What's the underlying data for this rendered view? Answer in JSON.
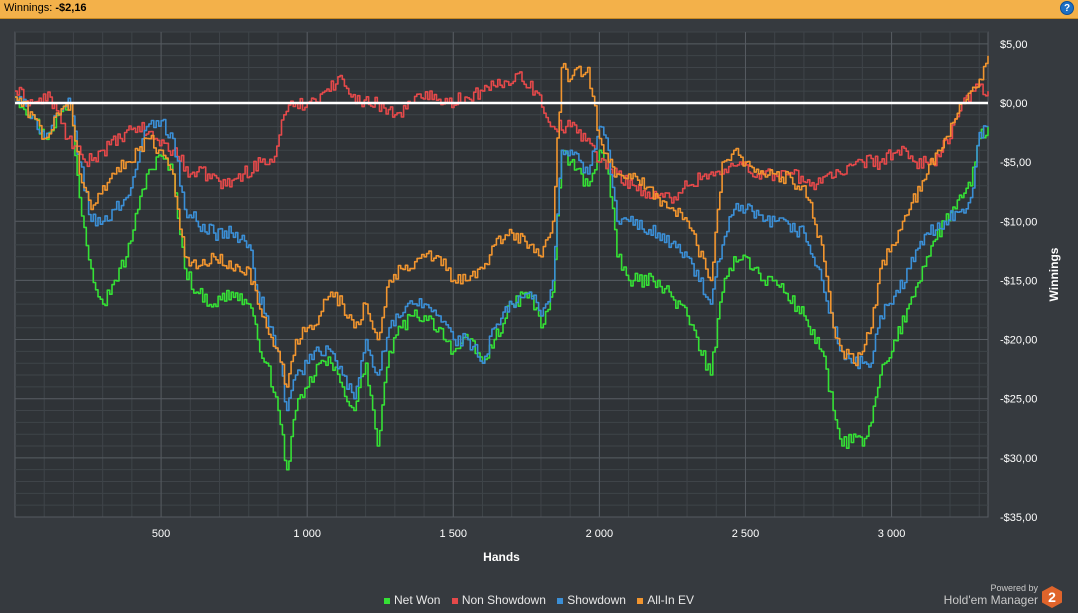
{
  "header": {
    "winnings_label": "Winnings:",
    "winnings_value": "-$2,16",
    "help_glyph": "?"
  },
  "branding": {
    "powered_by": "Powered by",
    "product": "Hold'em Manager",
    "logo_digit": "2"
  },
  "colors": {
    "background": "#363a3f",
    "plot_bg": "#2f3337",
    "header": "#f3b14a",
    "net_won": "#35e035",
    "non_showdown": "#e5494a",
    "showdown": "#3b8fd6",
    "all_in_ev": "#f1952f"
  },
  "chart_data": {
    "type": "line",
    "xlabel": "Hands",
    "ylabel": "Winnings",
    "xlim": [
      0,
      3330
    ],
    "ylim": [
      -35,
      6
    ],
    "x_ticks": [
      500,
      1000,
      1500,
      2000,
      2500,
      3000
    ],
    "x_tick_labels": [
      "500",
      "1 000",
      "1 500",
      "2 000",
      "2 500",
      "3 000"
    ],
    "y_ticks": [
      5,
      0,
      -5,
      -10,
      -15,
      -20,
      -25,
      -30,
      -35
    ],
    "y_tick_labels": [
      "$5,00",
      "$0,00",
      "-$5,00",
      "-$10,00",
      "-$15,00",
      "-$20,00",
      "-$25,00",
      "-$30,00",
      "-$35,00"
    ],
    "grid": true,
    "legend_position": "bottom",
    "series": [
      {
        "name": "Net Won",
        "color": "#35e035",
        "x": [
          0,
          60,
          100,
          150,
          190,
          220,
          260,
          300,
          340,
          380,
          420,
          450,
          500,
          540,
          580,
          620,
          680,
          740,
          800,
          830,
          860,
          900,
          930,
          960,
          1000,
          1040,
          1080,
          1120,
          1160,
          1200,
          1240,
          1280,
          1320,
          1360,
          1400,
          1450,
          1500,
          1550,
          1600,
          1640,
          1700,
          1760,
          1800,
          1840,
          1870,
          1900,
          1960,
          2000,
          2030,
          2060,
          2100,
          2200,
          2300,
          2380,
          2420,
          2460,
          2500,
          2560,
          2600,
          2700,
          2760,
          2800,
          2830,
          2870,
          2900,
          2930,
          2960,
          3000,
          3060,
          3120,
          3180,
          3240,
          3270,
          3300,
          3330
        ],
        "values": [
          0.5,
          -1,
          -3,
          -1,
          0,
          -8,
          -14,
          -17,
          -15,
          -13,
          -9,
          -6,
          -4.5,
          -6,
          -14,
          -16,
          -17,
          -16,
          -17,
          -20,
          -22,
          -26,
          -31,
          -26,
          -24,
          -22,
          -22,
          -24,
          -26,
          -22,
          -29,
          -21,
          -19,
          -18,
          -18,
          -19,
          -21,
          -20,
          -22,
          -20,
          -17,
          -16,
          -19,
          -16,
          -4,
          -5,
          -7,
          -4,
          -6,
          -13,
          -15,
          -15,
          -18,
          -23,
          -16,
          -13,
          -13,
          -15,
          -15,
          -18,
          -21,
          -26,
          -29,
          -28,
          -29,
          -27,
          -23,
          -21,
          -17,
          -13,
          -10,
          -8,
          -7,
          -3,
          -2
        ]
      },
      {
        "name": "Non Showdown",
        "color": "#e5494a",
        "x": [
          0,
          60,
          120,
          180,
          240,
          300,
          360,
          420,
          480,
          540,
          600,
          660,
          720,
          780,
          840,
          880,
          920,
          960,
          1000,
          1060,
          1120,
          1180,
          1240,
          1300,
          1360,
          1420,
          1480,
          1540,
          1600,
          1660,
          1720,
          1780,
          1840,
          1900,
          1960,
          2000,
          2060,
          2120,
          2180,
          2240,
          2300,
          2360,
          2420,
          2480,
          2540,
          2600,
          2660,
          2720,
          2780,
          2840,
          2900,
          2960,
          3020,
          3080,
          3140,
          3200,
          3240,
          3280,
          3330
        ],
        "values": [
          1,
          0,
          0.5,
          -3,
          -5,
          -4,
          -3,
          -2,
          -3,
          -4,
          -6,
          -6,
          -7,
          -6,
          -5,
          -5,
          -1,
          0,
          0,
          1,
          2,
          0,
          0,
          -1,
          0,
          1,
          0,
          0.5,
          1,
          1.5,
          2.5,
          1,
          -2,
          -2,
          -3,
          -5,
          -6,
          -7,
          -8,
          -8,
          -7,
          -6,
          -6,
          -5,
          -6,
          -6,
          -6,
          -7,
          -6,
          -6,
          -5,
          -5,
          -4,
          -5,
          -5,
          -3,
          0,
          1,
          1
        ]
      },
      {
        "name": "Showdown",
        "color": "#3b8fd6",
        "x": [
          0,
          60,
          100,
          150,
          190,
          220,
          260,
          300,
          340,
          380,
          420,
          450,
          500,
          540,
          580,
          620,
          680,
          740,
          800,
          830,
          860,
          900,
          930,
          960,
          1000,
          1040,
          1080,
          1120,
          1160,
          1200,
          1240,
          1280,
          1320,
          1360,
          1400,
          1450,
          1500,
          1550,
          1600,
          1640,
          1700,
          1760,
          1800,
          1840,
          1870,
          1900,
          1960,
          2000,
          2030,
          2060,
          2100,
          2200,
          2300,
          2380,
          2420,
          2460,
          2500,
          2560,
          2600,
          2700,
          2760,
          2800,
          2830,
          2870,
          2900,
          2930,
          2960,
          3000,
          3060,
          3120,
          3180,
          3240,
          3270,
          3300,
          3330
        ],
        "values": [
          0.5,
          -1,
          -3,
          -1,
          0,
          -5,
          -10,
          -10,
          -9,
          -8,
          -5,
          -2,
          -1.5,
          -3,
          -9,
          -10,
          -11,
          -11,
          -12,
          -16,
          -18,
          -21,
          -26,
          -23,
          -22,
          -21,
          -21,
          -23,
          -25,
          -20,
          -23,
          -19,
          -18,
          -17,
          -17,
          -18,
          -20,
          -20,
          -22,
          -19,
          -17,
          -16,
          -18,
          -15,
          -4,
          -4,
          -6,
          -2,
          -4,
          -10,
          -10,
          -11,
          -13,
          -17,
          -12,
          -9,
          -9,
          -10,
          -10,
          -11,
          -15,
          -19,
          -21,
          -22,
          -22,
          -22,
          -18,
          -17,
          -14,
          -11,
          -10,
          -9,
          -8,
          -2.5,
          -2
        ]
      },
      {
        "name": "All-In EV",
        "color": "#f1952f",
        "x": [
          0,
          60,
          100,
          150,
          190,
          220,
          260,
          300,
          340,
          380,
          420,
          450,
          500,
          540,
          580,
          620,
          680,
          740,
          800,
          830,
          860,
          900,
          930,
          960,
          1000,
          1040,
          1080,
          1120,
          1160,
          1200,
          1240,
          1280,
          1320,
          1360,
          1400,
          1450,
          1500,
          1550,
          1600,
          1640,
          1700,
          1760,
          1800,
          1840,
          1870,
          1900,
          1960,
          2000,
          2030,
          2060,
          2100,
          2200,
          2300,
          2380,
          2420,
          2460,
          2500,
          2560,
          2600,
          2700,
          2760,
          2800,
          2830,
          2870,
          2900,
          2930,
          2960,
          3000,
          3060,
          3120,
          3180,
          3240,
          3270,
          3300,
          3330
        ],
        "values": [
          0.5,
          -1,
          -3,
          -1,
          0,
          -6,
          -9,
          -7,
          -6,
          -5,
          -4,
          -3,
          -4,
          -6,
          -13,
          -14,
          -13,
          -14,
          -14,
          -17,
          -19,
          -21,
          -24,
          -20,
          -19,
          -18,
          -16,
          -17,
          -19,
          -17,
          -20,
          -15,
          -14,
          -14,
          -13,
          -13,
          -15,
          -15,
          -14,
          -12,
          -11,
          -12,
          -13,
          -10,
          3,
          2,
          3,
          -3,
          -5,
          -6,
          -6,
          -8,
          -10,
          -15,
          -5,
          -4,
          -5,
          -6,
          -6,
          -7,
          -12,
          -19,
          -21,
          -22,
          -21,
          -19,
          -14,
          -12,
          -9,
          -6,
          -3,
          0,
          1,
          2,
          4
        ]
      }
    ]
  }
}
